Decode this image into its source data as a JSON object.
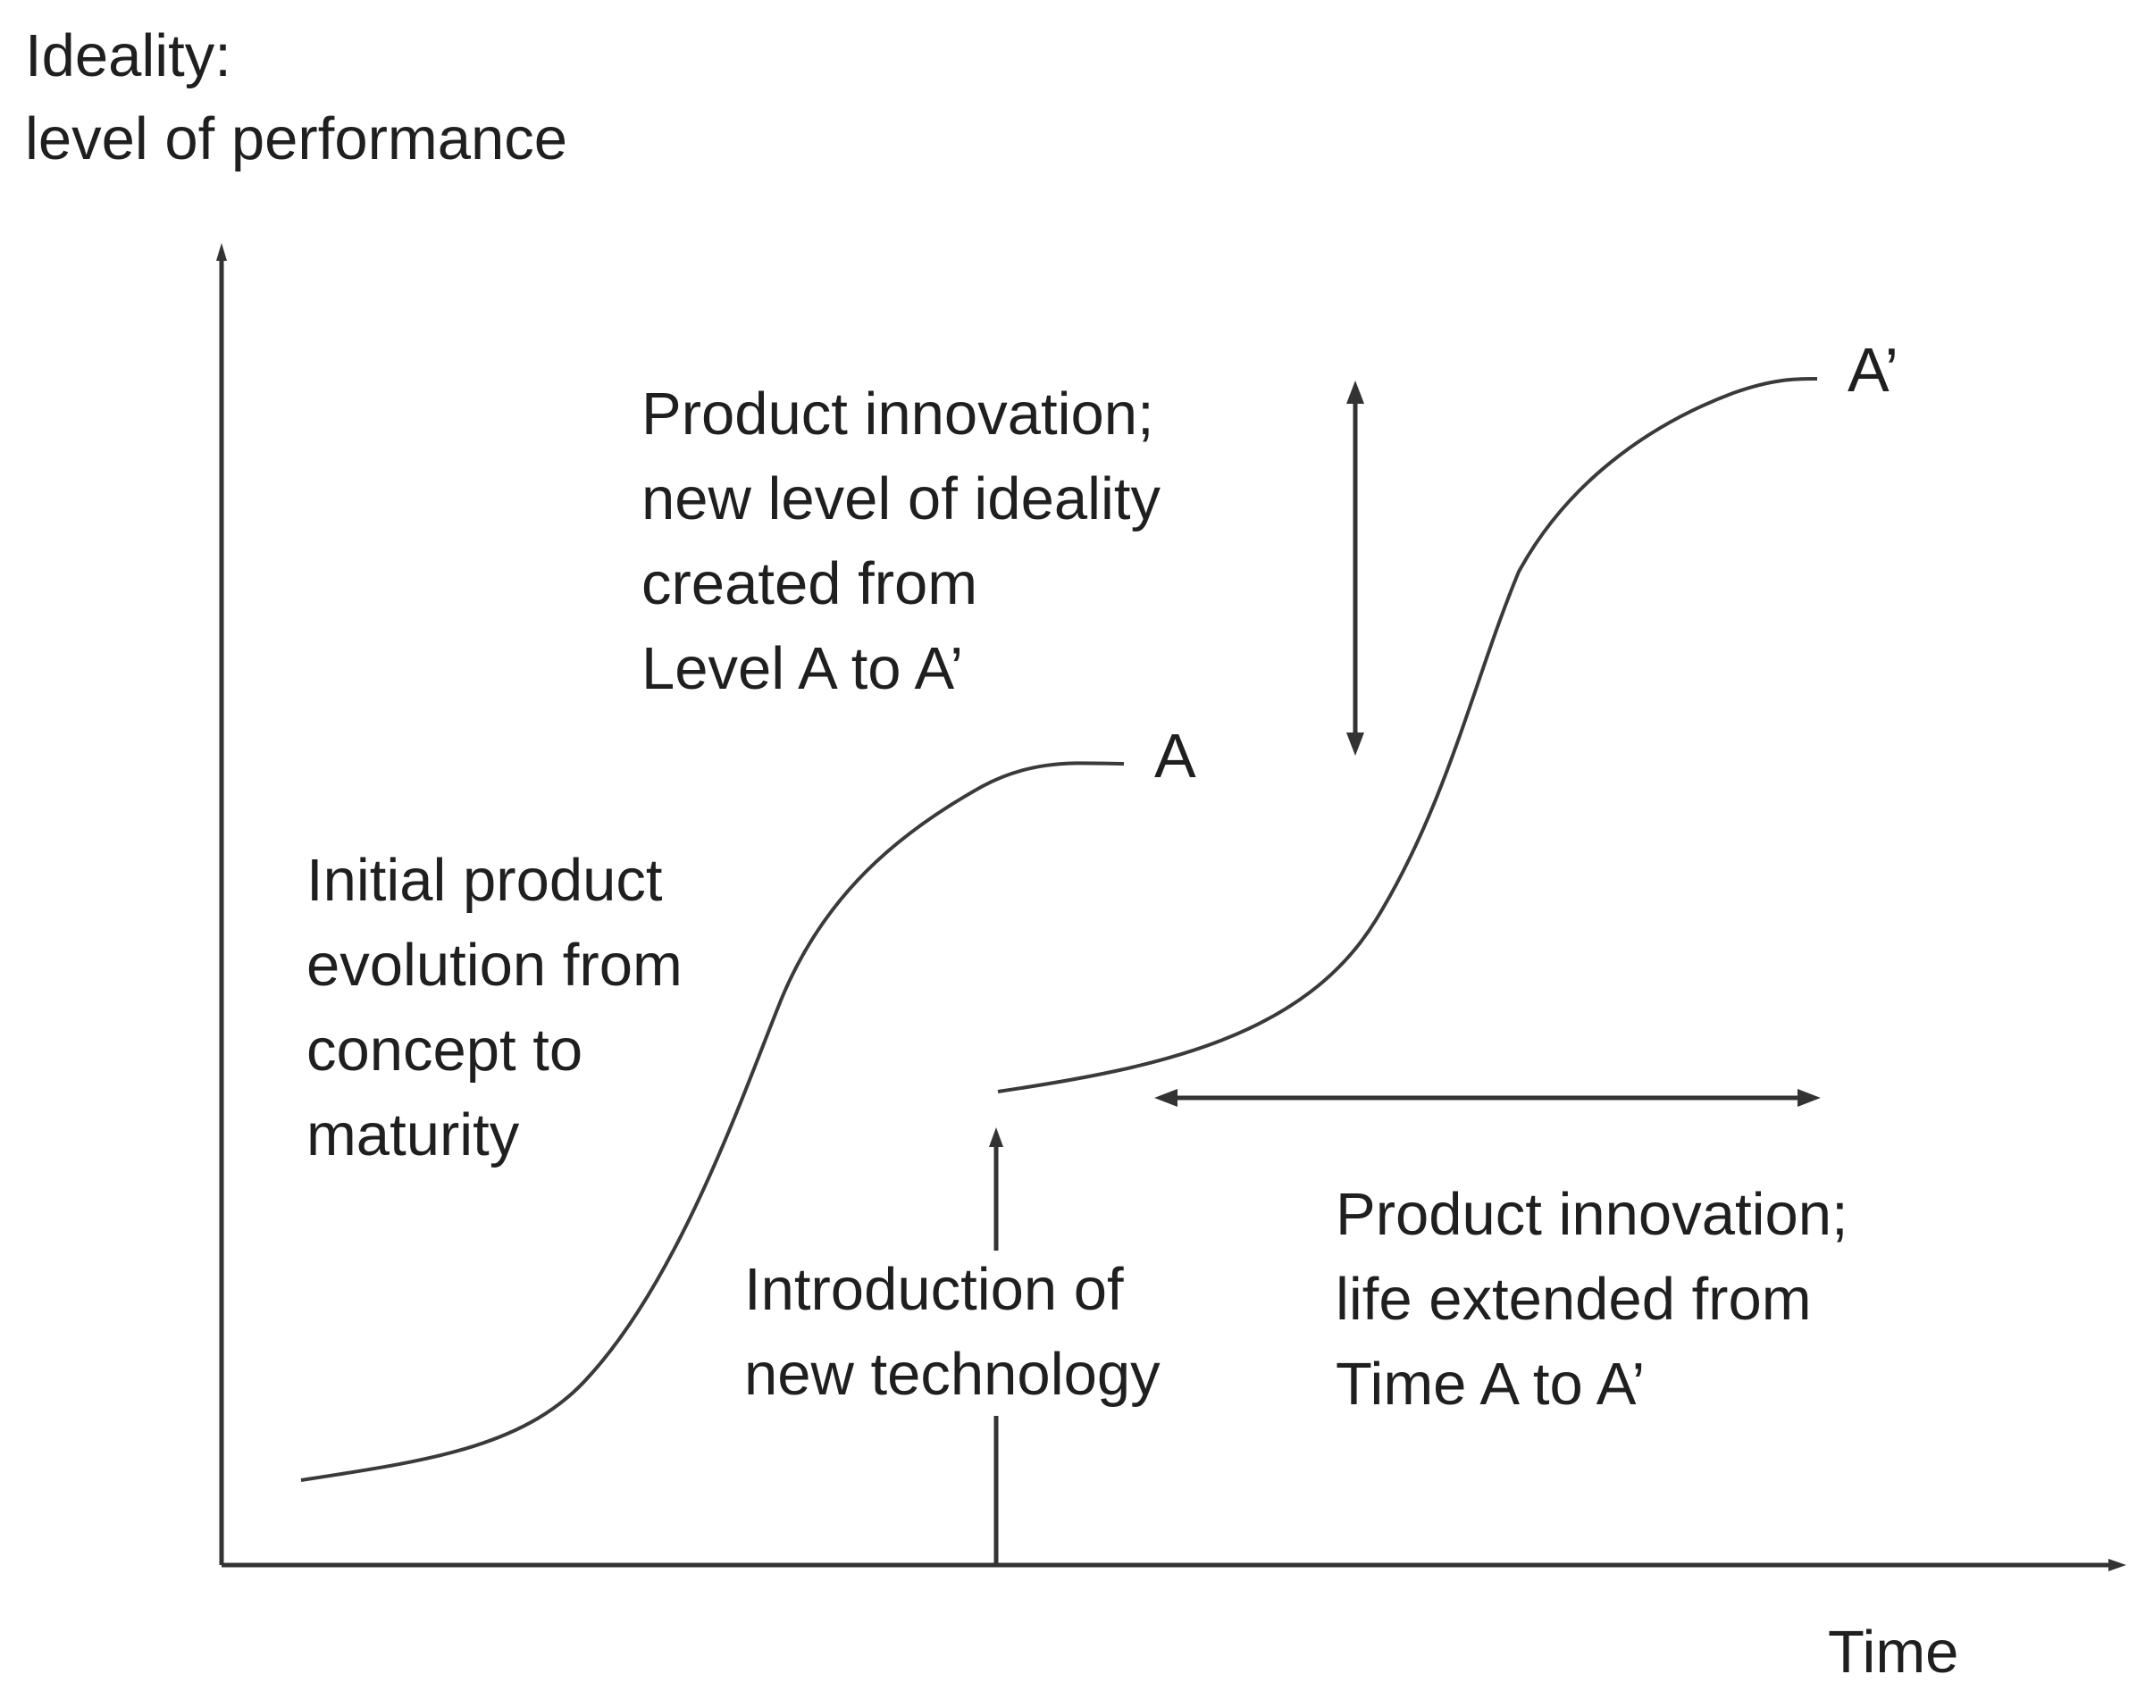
{
  "axes": {
    "y_label_line1": "Ideality:",
    "y_label_line2": "level of performance",
    "x_label": "Time"
  },
  "points": {
    "a": "A",
    "a_prime": "A’"
  },
  "annotations": {
    "initial": [
      "Initial product",
      "evolution from",
      "concept to",
      "maturity"
    ],
    "ideality": [
      "Product innovation;",
      "new level of ideality",
      "created from",
      "Level A to A’"
    ],
    "technology": [
      "Introduction of",
      "new technology"
    ],
    "life": [
      "Product innovation;",
      "life extended from",
      "Time A to A’"
    ]
  },
  "colors": {
    "line": "#333333",
    "text": "#1f1f1f"
  }
}
